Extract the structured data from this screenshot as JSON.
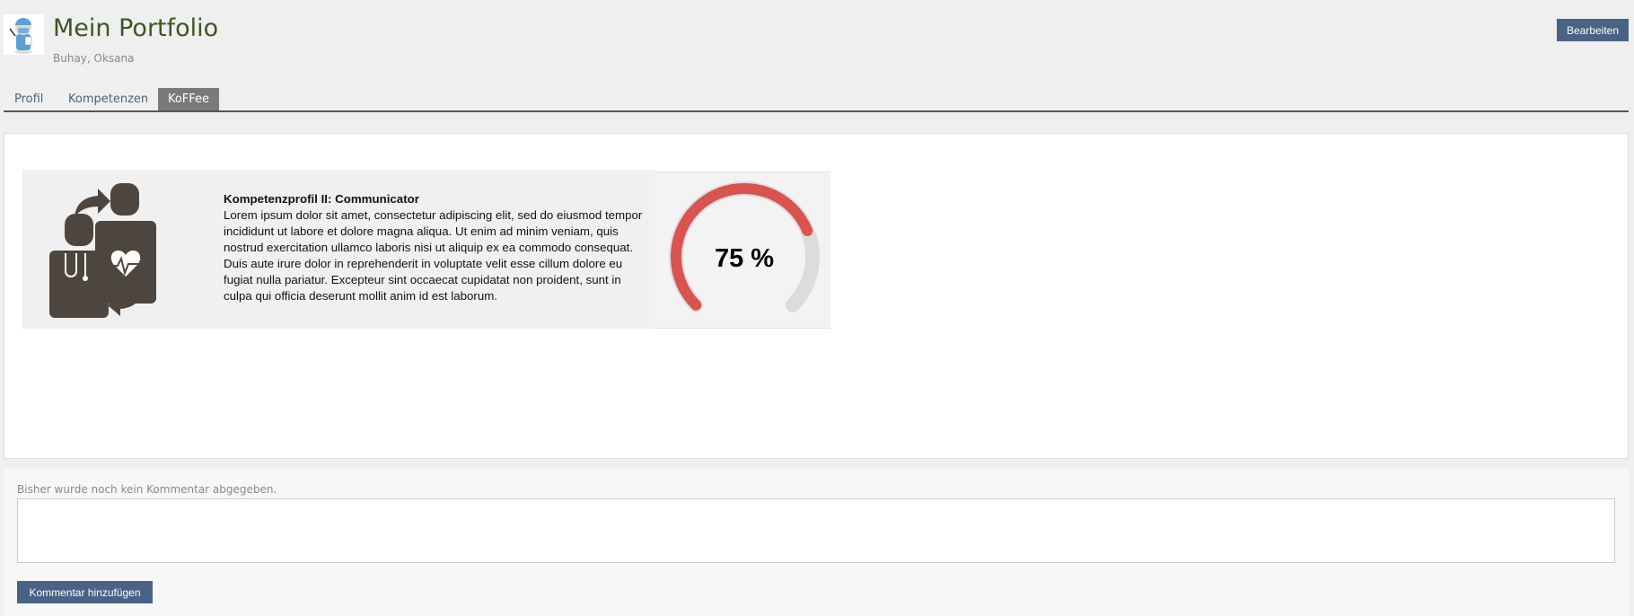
{
  "header": {
    "title": "Mein Portfolio",
    "subtitle": "Buhay, Oksana",
    "edit_label": "Bearbeiten"
  },
  "tabs": [
    {
      "label": "Profil"
    },
    {
      "label": "Kompetenzen"
    },
    {
      "label": "KoFFee",
      "active": true
    }
  ],
  "card": {
    "icon": "doctor-patient-exchange-icon",
    "title": "Kompetenzprofil II: Communicator",
    "body": "Lorem ipsum dolor sit amet, consectetur adipiscing elit, sed do eiusmod tempor incididunt ut labore et dolore magna aliqua. Ut enim ad minim veniam, quis nostrud exercitation ullamco laboris nisi ut aliquip ex ea commodo consequat. Duis aute irure dolor in reprehenderit in voluptate velit esse cillum dolore eu fugiat nulla pariatur. Excepteur sint occaecat cupidatat non proident, sunt in culpa qui officia deserunt mollit anim id est laborum.",
    "gauge": {
      "value": 75,
      "label": "75 %",
      "color": "#d9534f",
      "track_color": "#dcdcdc"
    }
  },
  "comments": {
    "empty_text": "Bisher wurde noch kein Kommentar abgegeben.",
    "input_value": "",
    "add_label": "Kommentar hinzufügen"
  },
  "colors": {
    "button": "#4a6285",
    "title": "#3e5621"
  }
}
